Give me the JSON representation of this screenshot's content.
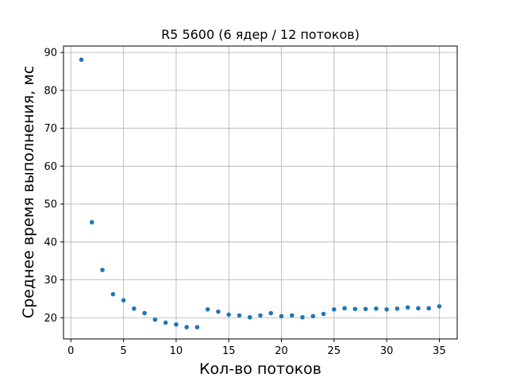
{
  "chart_data": {
    "type": "scatter",
    "title": "R5 5600 (6 ядер / 12 потоков)",
    "xlabel": "Кол-во потоков",
    "ylabel": "Среднее время выполнения, мс",
    "xlim": [
      -0.7,
      36.7
    ],
    "ylim": [
      14.4,
      91.7
    ],
    "xticks": [
      0,
      5,
      10,
      15,
      20,
      25,
      30,
      35
    ],
    "yticks": [
      20,
      30,
      40,
      50,
      60,
      70,
      80,
      90
    ],
    "grid": true,
    "color": "#1f77b4",
    "series": [
      {
        "x": [
          1,
          2,
          3,
          4,
          5,
          6,
          7,
          8,
          9,
          10,
          11,
          12,
          13,
          14,
          15,
          16,
          17,
          18,
          19,
          20,
          21,
          22,
          23,
          24,
          25,
          26,
          27,
          28,
          29,
          30,
          31,
          32,
          33,
          34,
          35
        ],
        "y": [
          88.1,
          45.2,
          32.6,
          26.2,
          24.6,
          22.4,
          21.2,
          19.5,
          18.7,
          18.2,
          17.5,
          17.5,
          22.2,
          21.6,
          20.8,
          20.6,
          20.1,
          20.6,
          21.2,
          20.4,
          20.6,
          20.1,
          20.4,
          21.0,
          22.2,
          22.5,
          22.3,
          22.3,
          22.4,
          22.2,
          22.4,
          22.7,
          22.5,
          22.5,
          23.0
        ]
      }
    ]
  }
}
